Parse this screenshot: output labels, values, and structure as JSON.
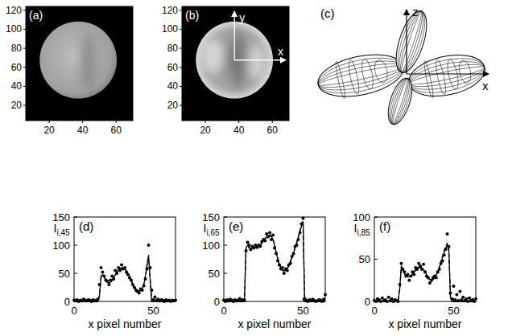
{
  "chart_data": [
    {
      "type": "image",
      "title": "(a)",
      "xlim": [
        6,
        70
      ],
      "ylim": [
        4,
        124
      ],
      "xticks": [
        20,
        40,
        60
      ],
      "yticks": [
        20,
        40,
        60,
        80,
        100,
        120
      ]
    },
    {
      "type": "image",
      "title": "(b)",
      "xlim": [
        6,
        70
      ],
      "ylim": [
        4,
        124
      ],
      "xticks": [
        20,
        40,
        60
      ],
      "yticks": [
        20,
        40,
        60,
        80,
        100,
        120
      ],
      "annotations": [
        "y",
        "x"
      ]
    },
    {
      "type": "diagram",
      "title": "(c)",
      "annotations": [
        "z",
        "x"
      ]
    },
    {
      "type": "line",
      "title": "(d)",
      "ylabel": "I",
      "ylabel_subscript": "i,45",
      "xlabel": "x pixel number",
      "x": [
        0,
        1,
        2,
        3,
        4,
        5,
        6,
        7,
        8,
        9,
        10,
        11,
        12,
        13,
        14,
        15,
        16,
        17,
        18,
        19,
        20,
        21,
        22,
        23,
        24,
        25,
        26,
        27,
        28,
        29,
        30,
        31,
        32,
        33,
        34,
        35,
        36,
        37,
        38,
        39,
        40,
        41,
        42,
        43,
        44,
        45,
        46,
        47,
        48,
        49,
        50,
        51,
        52,
        53,
        54,
        55,
        56,
        57,
        58,
        59,
        60,
        61,
        62,
        63,
        64
      ],
      "xlim": [
        0,
        64
      ],
      "ylim": [
        0,
        150
      ],
      "xticks": [
        0,
        50
      ],
      "yticks": [
        0,
        50,
        100,
        150
      ],
      "series": [
        {
          "type": "scatter",
          "marker": "circle",
          "color": "#000000",
          "values": [
            2,
            1,
            3,
            0,
            2,
            1,
            4,
            2,
            1,
            3,
            2,
            0,
            3,
            1,
            2,
            4,
            30,
            60,
            52,
            45,
            38,
            36,
            30,
            38,
            45,
            40,
            55,
            50,
            60,
            55,
            65,
            58,
            60,
            52,
            48,
            42,
            38,
            30,
            25,
            20,
            18,
            15,
            22,
            20,
            28,
            40,
            58,
            100,
            60,
            20,
            3,
            8,
            2,
            4,
            1,
            3,
            2,
            0,
            3,
            1,
            2,
            0,
            2,
            1,
            2
          ]
        },
        {
          "type": "line",
          "line_style": "solid",
          "color": "#000000",
          "values": [
            0,
            0,
            0,
            0,
            0,
            0,
            0,
            0,
            0,
            0,
            0,
            0,
            0,
            0,
            0,
            0,
            10,
            45,
            48,
            44,
            38,
            34,
            33,
            34,
            37,
            42,
            47,
            52,
            56,
            59,
            60,
            60,
            58,
            55,
            50,
            44,
            37,
            31,
            26,
            22,
            19,
            18,
            19,
            23,
            30,
            45,
            65,
            82,
            40,
            0,
            0,
            0,
            0,
            0,
            0,
            0,
            0,
            0,
            0,
            0,
            0,
            0,
            0,
            0,
            0
          ]
        },
        {
          "type": "line",
          "line_style": "dashed",
          "color": "#000000",
          "values": [
            0,
            0,
            0,
            0,
            0,
            0,
            0,
            0,
            0,
            0,
            0,
            0,
            0,
            0,
            0,
            0,
            10,
            42,
            46,
            43,
            38,
            34,
            33,
            34,
            37,
            42,
            47,
            52,
            54,
            57,
            58,
            58,
            57,
            54,
            50,
            44,
            37,
            31,
            26,
            22,
            20,
            19,
            20,
            23,
            30,
            45,
            62,
            78,
            38,
            0,
            0,
            0,
            0,
            0,
            0,
            0,
            0,
            0,
            0,
            0,
            0,
            0,
            0,
            0,
            0
          ]
        }
      ]
    },
    {
      "type": "line",
      "title": "(e)",
      "ylabel": "I",
      "ylabel_subscript": "i,65",
      "xlabel": "x pixel number",
      "x": [
        0,
        1,
        2,
        3,
        4,
        5,
        6,
        7,
        8,
        9,
        10,
        11,
        12,
        13,
        14,
        15,
        16,
        17,
        18,
        19,
        20,
        21,
        22,
        23,
        24,
        25,
        26,
        27,
        28,
        29,
        30,
        31,
        32,
        33,
        34,
        35,
        36,
        37,
        38,
        39,
        40,
        41,
        42,
        43,
        44,
        45,
        46,
        47,
        48,
        49,
        50,
        51,
        52,
        53,
        54,
        55,
        56,
        57,
        58,
        59,
        60,
        61,
        62,
        63,
        64
      ],
      "xlim": [
        0,
        64
      ],
      "ylim": [
        0,
        150
      ],
      "xticks": [
        0,
        50
      ],
      "yticks": [
        0,
        50,
        100,
        150
      ],
      "series": [
        {
          "type": "scatter",
          "marker": "circle",
          "color": "#000000",
          "values": [
            2,
            0,
            3,
            1,
            4,
            2,
            0,
            3,
            1,
            2,
            5,
            1,
            3,
            2,
            90,
            105,
            100,
            92,
            98,
            95,
            100,
            96,
            100,
            98,
            106,
            110,
            108,
            120,
            115,
            122,
            110,
            118,
            95,
            85,
            72,
            65,
            58,
            60,
            50,
            58,
            55,
            65,
            68,
            80,
            85,
            98,
            100,
            110,
            122,
            138,
            148,
            5,
            2,
            0,
            3,
            1,
            4,
            2,
            0,
            1,
            3,
            2,
            0,
            4,
            12
          ]
        },
        {
          "type": "line",
          "line_style": "solid",
          "color": "#000000",
          "values": [
            0,
            0,
            0,
            0,
            0,
            0,
            0,
            0,
            0,
            0,
            0,
            0,
            0,
            0,
            95,
            100,
            96,
            94,
            95,
            96,
            97,
            97,
            98,
            100,
            104,
            108,
            112,
            115,
            117,
            118,
            116,
            110,
            100,
            88,
            76,
            66,
            59,
            55,
            54,
            55,
            58,
            63,
            70,
            78,
            86,
            95,
            104,
            114,
            124,
            134,
            142,
            0,
            0,
            0,
            0,
            0,
            0,
            0,
            0,
            0,
            0,
            0,
            0,
            0,
            0
          ]
        },
        {
          "type": "line",
          "line_style": "dashed",
          "color": "#000000",
          "values": [
            0,
            0,
            0,
            0,
            0,
            0,
            0,
            0,
            0,
            0,
            0,
            0,
            0,
            0,
            95,
            98,
            95,
            93,
            94,
            95,
            96,
            97,
            98,
            100,
            103,
            107,
            111,
            114,
            116,
            117,
            115,
            110,
            101,
            90,
            78,
            68,
            60,
            56,
            55,
            56,
            59,
            64,
            71,
            79,
            87,
            96,
            105,
            115,
            125,
            135,
            143,
            0,
            0,
            0,
            0,
            0,
            0,
            0,
            0,
            0,
            0,
            0,
            0,
            0,
            0
          ]
        }
      ]
    },
    {
      "type": "line",
      "title": "(f)",
      "ylabel": "I",
      "ylabel_subscript": "i,85",
      "xlabel": "x pixel number",
      "x": [
        0,
        1,
        2,
        3,
        4,
        5,
        6,
        7,
        8,
        9,
        10,
        11,
        12,
        13,
        14,
        15,
        16,
        17,
        18,
        19,
        20,
        21,
        22,
        23,
        24,
        25,
        26,
        27,
        28,
        29,
        30,
        31,
        32,
        33,
        34,
        35,
        36,
        37,
        38,
        39,
        40,
        41,
        42,
        43,
        44,
        45,
        46,
        47,
        48,
        49,
        50,
        51,
        52,
        53,
        54,
        55,
        56,
        57,
        58,
        59,
        60,
        61,
        62,
        63,
        64
      ],
      "xlim": [
        0,
        64
      ],
      "ylim": [
        0,
        100
      ],
      "xticks": [
        0,
        50
      ],
      "yticks": [
        0,
        50,
        100
      ],
      "series": [
        {
          "type": "scatter",
          "marker": "circle",
          "color": "#000000",
          "values": [
            1,
            0,
            3,
            2,
            0,
            4,
            1,
            2,
            0,
            5,
            1,
            3,
            0,
            2,
            1,
            0,
            20,
            45,
            38,
            35,
            30,
            32,
            25,
            30,
            35,
            32,
            40,
            38,
            45,
            42,
            38,
            44,
            35,
            30,
            28,
            22,
            25,
            28,
            30,
            28,
            35,
            38,
            45,
            48,
            55,
            62,
            80,
            65,
            10,
            3,
            18,
            2,
            8,
            1,
            12,
            2,
            5,
            1,
            3,
            0,
            4,
            1,
            2,
            0,
            3
          ]
        },
        {
          "type": "line",
          "line_style": "solid",
          "color": "#000000",
          "values": [
            0,
            0,
            0,
            0,
            0,
            0,
            0,
            0,
            0,
            0,
            0,
            0,
            0,
            0,
            0,
            0,
            15,
            42,
            38,
            33,
            30,
            29,
            29,
            30,
            32,
            35,
            38,
            40,
            41,
            41,
            40,
            38,
            35,
            31,
            28,
            26,
            25,
            26,
            28,
            31,
            35,
            40,
            46,
            52,
            58,
            63,
            67,
            60,
            5,
            0,
            0,
            0,
            0,
            0,
            0,
            0,
            0,
            0,
            0,
            0,
            0,
            0,
            0,
            0,
            0
          ]
        },
        {
          "type": "line",
          "line_style": "dashed",
          "color": "#000000",
          "values": [
            0,
            0,
            0,
            0,
            0,
            0,
            0,
            0,
            0,
            0,
            0,
            0,
            0,
            0,
            0,
            0,
            14,
            40,
            37,
            33,
            30,
            29,
            29,
            30,
            32,
            34,
            37,
            39,
            40,
            40,
            39,
            37,
            34,
            31,
            28,
            26,
            25,
            26,
            28,
            31,
            35,
            41,
            47,
            54,
            60,
            65,
            69,
            62,
            6,
            0,
            0,
            0,
            0,
            0,
            0,
            0,
            0,
            0,
            0,
            0,
            0,
            0,
            0,
            0,
            0
          ]
        }
      ]
    }
  ]
}
